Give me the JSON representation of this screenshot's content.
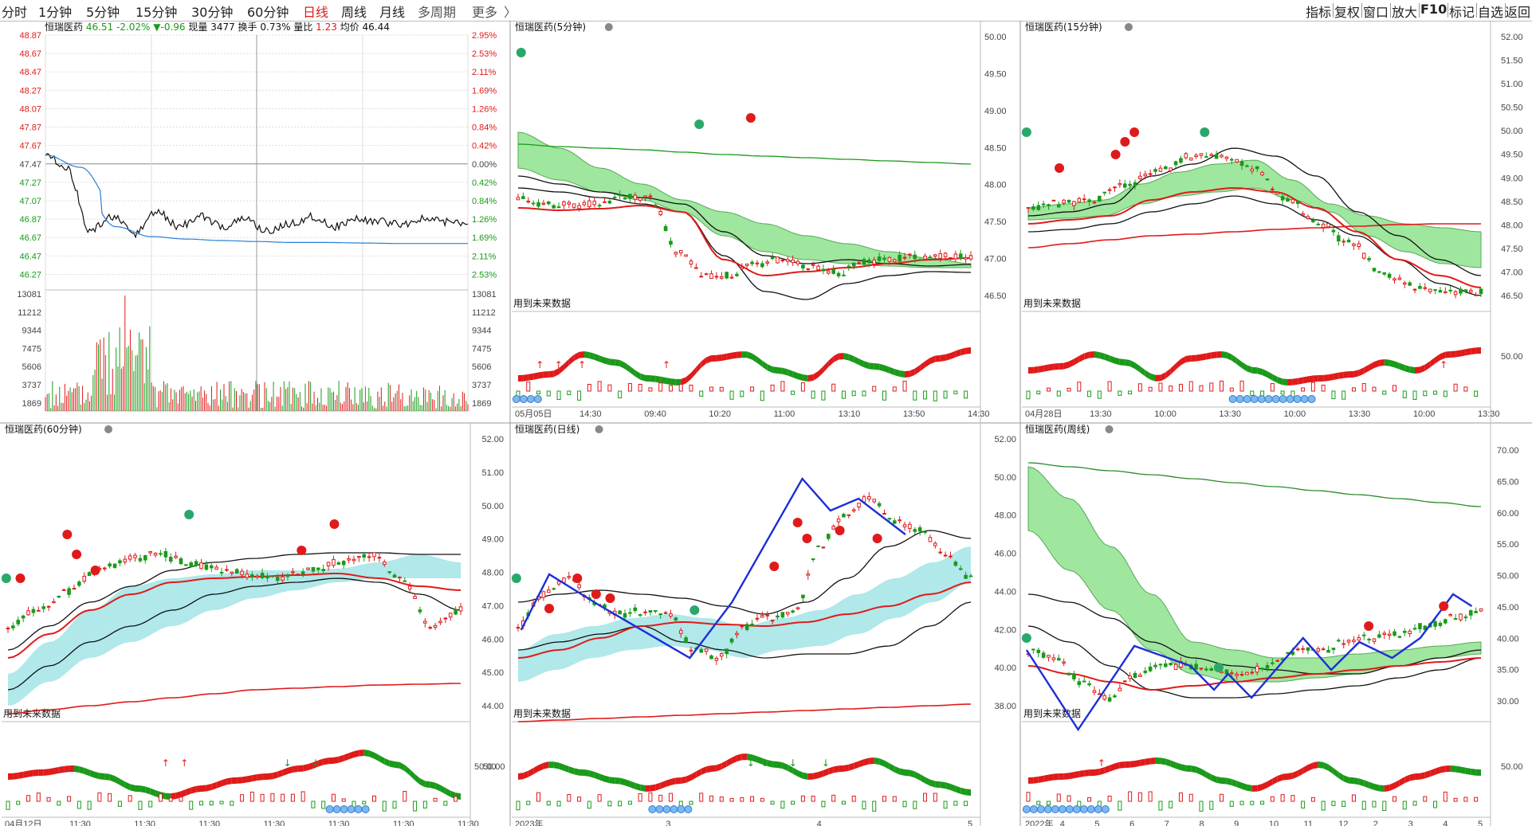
{
  "topbar": {
    "periods": [
      {
        "label": "分时",
        "active": false
      },
      {
        "label": "1分钟",
        "active": false
      },
      {
        "label": "5分钟",
        "active": false
      },
      {
        "label": "15分钟",
        "active": false
      },
      {
        "label": "30分钟",
        "active": false
      },
      {
        "label": "60分钟",
        "active": false
      },
      {
        "label": "日线",
        "active": true
      },
      {
        "label": "周线",
        "active": false
      },
      {
        "label": "月线",
        "active": false
      },
      {
        "label": "多周期",
        "active": false
      },
      {
        "label": "更多",
        "active": false
      }
    ],
    "more_arrow": "〉",
    "right_buttons": [
      "指标",
      "复权",
      "窗口",
      "放大",
      "F10",
      "标记",
      "自选",
      "返回"
    ]
  },
  "timeline": {
    "stock_name": "恒瑞医药",
    "info": {
      "price": "46.51",
      "change_pct": "-2.02%",
      "change": "▼-0.96",
      "volume_label": "现量",
      "volume": "3477",
      "turnover_label": "换手",
      "turnover": "0.73%",
      "ratio_label": "量比",
      "ratio": "1.23",
      "avg_label": "均价",
      "avg": "46.44"
    },
    "price_ticks_left": [
      "48.87",
      "48.67",
      "48.47",
      "48.27",
      "48.07",
      "47.87",
      "47.67",
      "47.47",
      "47.27",
      "47.07",
      "46.87",
      "46.67",
      "46.47",
      "46.27"
    ],
    "pct_ticks_right": [
      "2.95%",
      "2.53%",
      "2.11%",
      "1.69%",
      "1.26%",
      "0.84%",
      "0.42%",
      "0.00%",
      "0.42%",
      "0.84%",
      "1.26%",
      "1.69%",
      "2.11%",
      "2.53%"
    ],
    "vol_ticks": [
      "13081",
      "11212",
      "9344",
      "7475",
      "5606",
      "3737",
      "1869"
    ],
    "colors": {
      "up": "#e01a1a",
      "down": "#1a9a1a",
      "price_line": "#111111",
      "avg_line": "#2a7fd4"
    }
  },
  "panels": [
    {
      "id": "5min",
      "title": "恒瑞医药(5分钟)",
      "axis": [
        "50.00",
        "49.50",
        "49.00",
        "48.50",
        "48.00",
        "47.50",
        "47.00",
        "46.50"
      ],
      "sub_axis": [],
      "note": "用到未来数据",
      "date_ticks": [
        "05月05日",
        "14:30",
        "09:40",
        "10:20",
        "11:00",
        "13:10",
        "13:50",
        "14:30"
      ]
    },
    {
      "id": "15min",
      "title": "恒瑞医药(15分钟)",
      "axis": [
        "52.00",
        "51.50",
        "51.00",
        "50.50",
        "50.00",
        "49.50",
        "49.00",
        "48.50",
        "48.00",
        "47.50",
        "47.00",
        "46.50"
      ],
      "sub_axis": [
        "50.00"
      ],
      "note": "用到未来数据",
      "date_ticks": [
        "04月28日",
        "13:30",
        "10:00",
        "13:30",
        "10:00",
        "13:30",
        "10:00",
        "13:30"
      ]
    },
    {
      "id": "60min",
      "title": "恒瑞医药(60分钟)",
      "axis": [],
      "sub_axis": [
        "50.00"
      ],
      "note": "用到未来数据",
      "date_ticks": [
        "04月12日",
        "11:30",
        "11:30",
        "11:30",
        "11:30",
        "11:30",
        "11:30",
        "11:30"
      ]
    },
    {
      "id": "day",
      "title": "恒瑞医药(日线)",
      "axis": [
        "52.00",
        "51.00",
        "50.00",
        "49.00",
        "48.00",
        "47.00",
        "46.00",
        "45.00",
        "44.00"
      ],
      "sub_axis": [
        "50.00"
      ],
      "note": "用到未来数据",
      "date_ticks": [
        "2023年",
        "3",
        "4",
        "5"
      ]
    },
    {
      "id": "week",
      "title": "恒瑞医药(周线)",
      "axis": [
        "52.00",
        "50.00",
        "48.00",
        "46.00",
        "44.00",
        "42.00",
        "40.00",
        "38.00"
      ],
      "axis_right": [
        "70.00",
        "65.00",
        "60.00",
        "55.00",
        "50.00",
        "45.00",
        "40.00",
        "35.00",
        "30.00"
      ],
      "sub_axis": [
        "50.00"
      ],
      "note": "用到未来数据",
      "date_ticks": [
        "2022年",
        "4",
        "5",
        "6",
        "7",
        "8",
        "9",
        "10",
        "11",
        "12",
        "2",
        "3",
        "4",
        "5"
      ]
    }
  ],
  "colors": {
    "red": "#e01a1a",
    "green": "#1a9a1a",
    "blue": "#1c2fd6",
    "band_green": "#8fe28f",
    "band_cyan": "#a8e6e8",
    "grid": "#cfcfcf"
  }
}
